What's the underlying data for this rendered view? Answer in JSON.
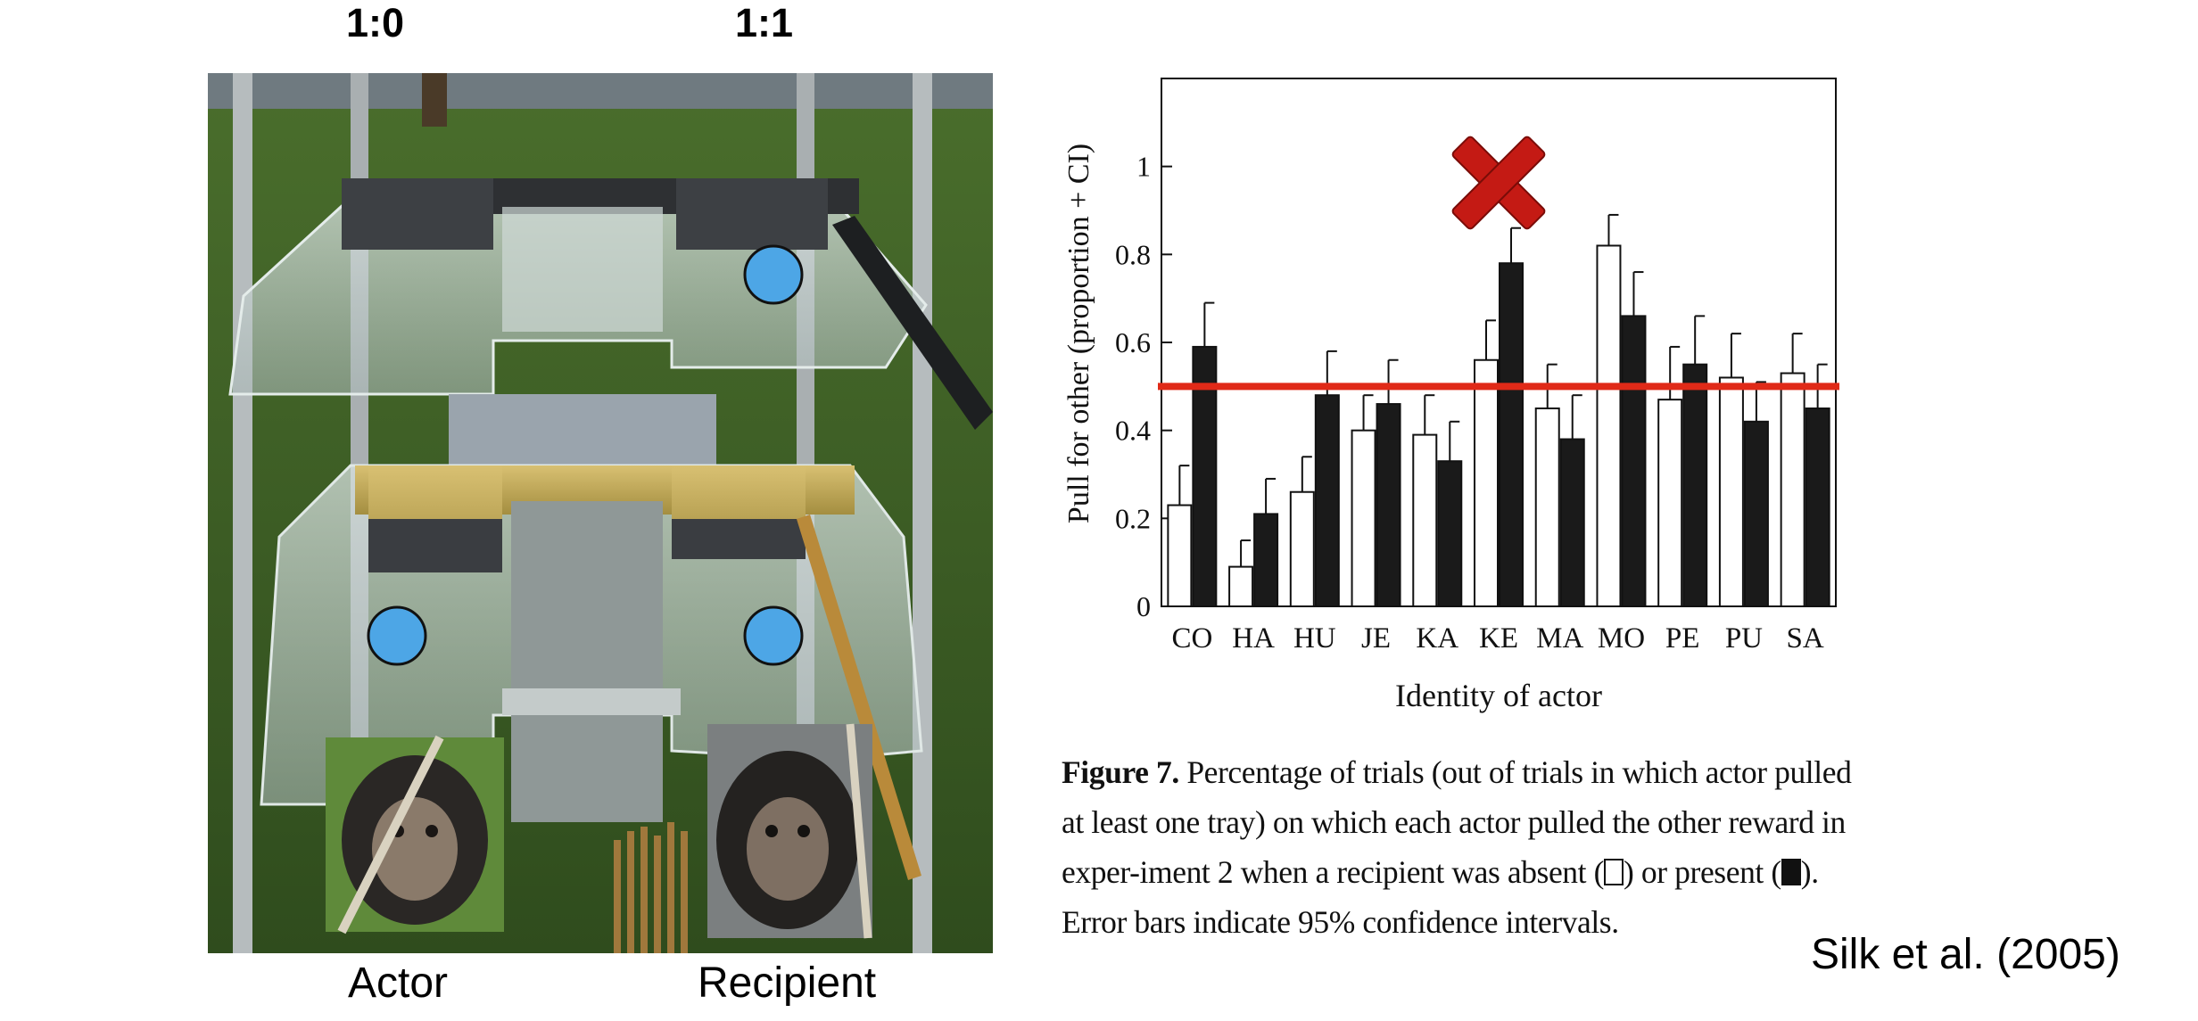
{
  "labels": {
    "ratio_left": "1:0",
    "ratio_right": "1:1",
    "actor": "Actor",
    "recipient": "Recipient"
  },
  "citation": "Silk et al. (2005)",
  "caption": {
    "figure_label": "Figure 7.",
    "part1": "Percentage of trials (out of trials in which actor pulled at least one tray) on which each actor pulled the other reward in exper-iment 2 when a recipient was absent (",
    "part2": ") or present (",
    "part3": "). Error bars indicate 95% confidence intervals."
  },
  "colors": {
    "marker_dot": "#4da6e6",
    "reference_line": "#e02a18",
    "absent_bar": "#ffffff",
    "present_bar": "#1a1a1a",
    "cross_mark": "#c41a14"
  },
  "chart_data": {
    "type": "bar",
    "categories": [
      "CO",
      "HA",
      "HU",
      "JE",
      "KA",
      "KE",
      "MA",
      "MO",
      "PE",
      "PU",
      "SA"
    ],
    "series": [
      {
        "values": [
          0.23,
          0.09,
          0.26,
          0.4,
          0.39,
          0.56,
          0.45,
          0.82,
          0.47,
          0.52,
          0.53
        ],
        "ci_upper": [
          0.32,
          0.15,
          0.34,
          0.48,
          0.48,
          0.65,
          0.55,
          0.89,
          0.59,
          0.62,
          0.62
        ]
      },
      {
        "values": [
          0.59,
          0.21,
          0.48,
          0.46,
          0.33,
          0.78,
          0.38,
          0.66,
          0.55,
          0.42,
          0.45
        ],
        "ci_upper": [
          0.69,
          0.29,
          0.58,
          0.56,
          0.42,
          0.86,
          0.48,
          0.76,
          0.66,
          0.51,
          0.55
        ]
      }
    ],
    "xlabel": "Identity of actor",
    "ylabel": "Pull for other (proportion + CI)",
    "yticks": [
      0,
      0.2,
      0.4,
      0.6,
      0.8,
      1
    ],
    "ylim": [
      0,
      1.2
    ],
    "reference_line_y": 0.5,
    "crossed_out_category": "KE",
    "grid": false
  }
}
